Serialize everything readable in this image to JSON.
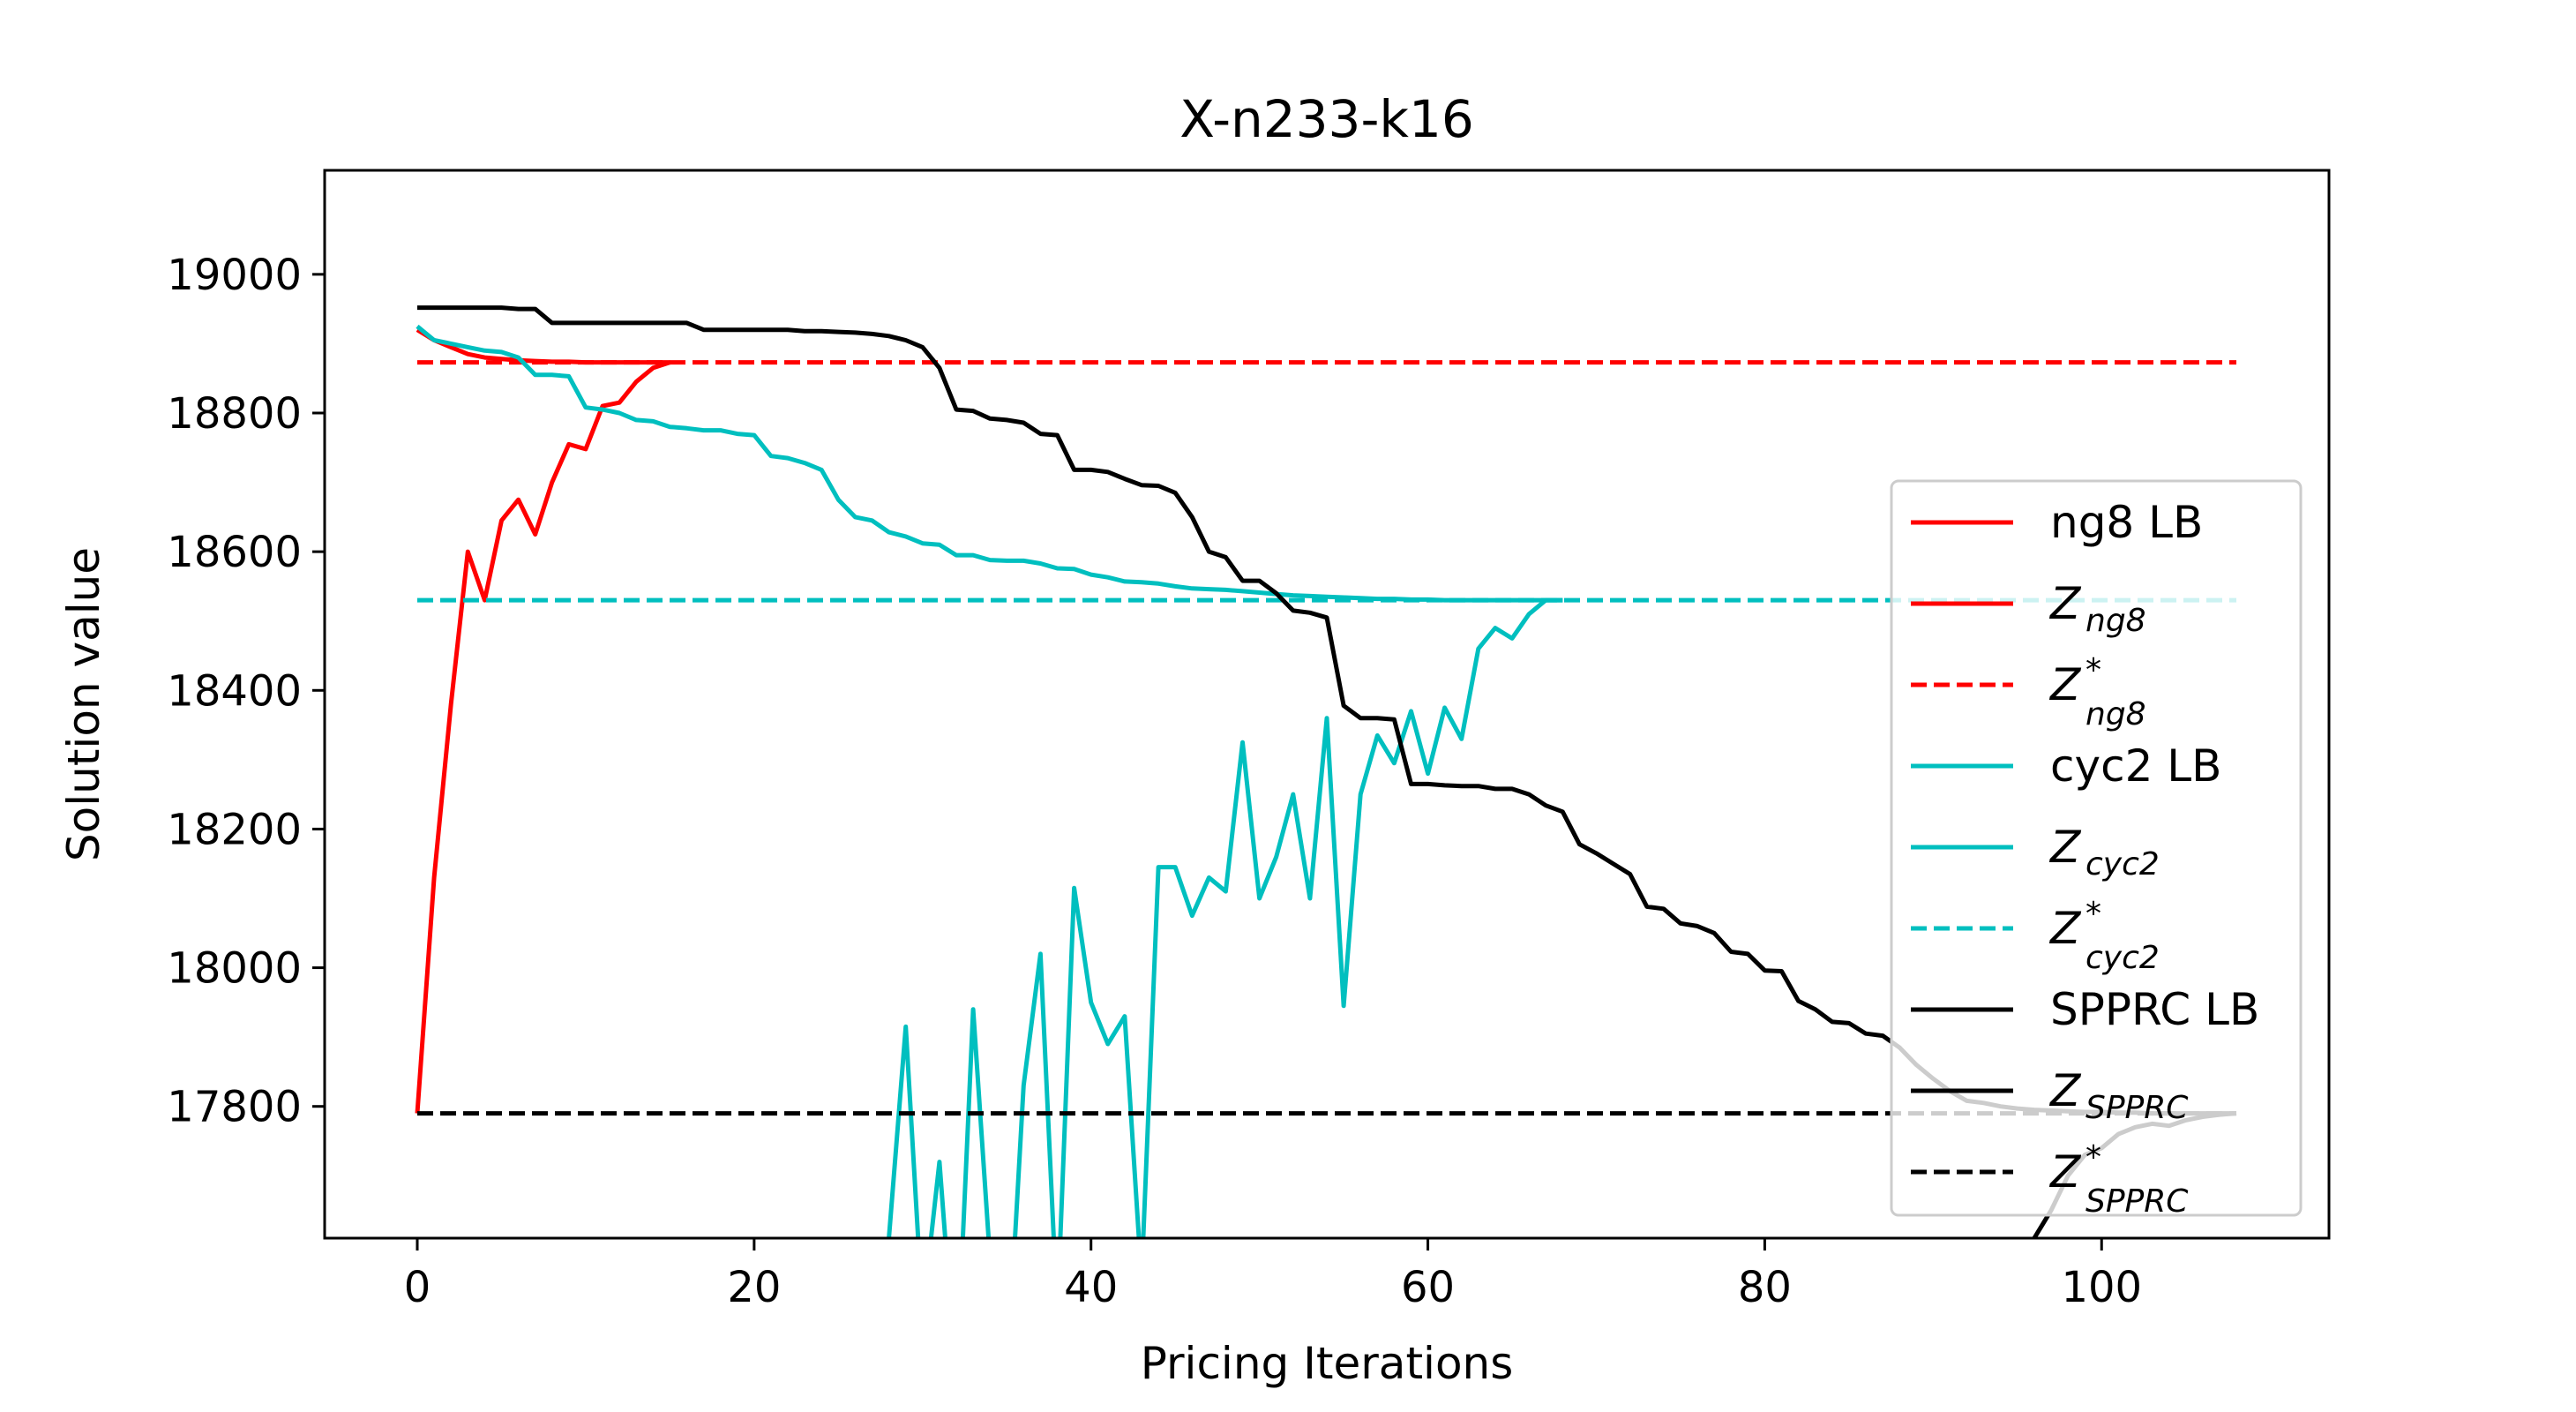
{
  "chart_data": {
    "type": "line",
    "title": "X-n233-k16",
    "xlabel": "Pricing Iterations",
    "ylabel": "Solution value",
    "xlim": [
      -5.5,
      113.5
    ],
    "ylim": [
      17610,
      19150
    ],
    "xticks": [
      0,
      20,
      40,
      60,
      80,
      100
    ],
    "yticks": [
      17800,
      18000,
      18200,
      18400,
      18600,
      18800,
      19000
    ],
    "grid": false,
    "legend_position": "right",
    "series": [
      {
        "name": "ng8 LB",
        "color": "#ff0000",
        "style": "solid",
        "x": [
          0,
          1,
          2,
          3,
          4,
          5,
          6,
          7,
          8,
          9,
          10,
          11,
          12,
          13,
          14,
          15
        ],
        "y": [
          17790,
          18130,
          18380,
          18600,
          18530,
          18645,
          18675,
          18625,
          18700,
          18755,
          18748,
          18810,
          18815,
          18845,
          18865,
          18873
        ]
      },
      {
        "name": "Z_{ng8}",
        "color": "#ff0000",
        "style": "solid",
        "x": [
          0,
          1,
          2,
          3,
          4,
          5,
          6,
          7,
          8,
          9,
          10,
          11,
          12,
          13,
          14,
          15
        ],
        "y": [
          18920,
          18905,
          18895,
          18885,
          18880,
          18878,
          18876,
          18875,
          18874,
          18874,
          18873,
          18873,
          18873,
          18873,
          18873,
          18873
        ]
      },
      {
        "name": "Z^*_{ng8}",
        "color": "#ff0000",
        "style": "dashed",
        "x": [
          0,
          108
        ],
        "y": [
          18873,
          18873
        ]
      },
      {
        "name": "cyc2 LB",
        "color": "#00bfbf",
        "style": "solid",
        "x": [
          28,
          29,
          30,
          31,
          32,
          33,
          34,
          35,
          36,
          37,
          38,
          39,
          40,
          41,
          42,
          43,
          44,
          45,
          46,
          47,
          48,
          49,
          50,
          51,
          52,
          53,
          54,
          55,
          56,
          57,
          58,
          59,
          60,
          61,
          62,
          63,
          64,
          65,
          66,
          67,
          68
        ],
        "y": [
          17610,
          17915,
          17500,
          17720,
          17400,
          17940,
          17580,
          17400,
          17830,
          18020,
          17500,
          18115,
          17950,
          17890,
          17930,
          17550,
          18145,
          18145,
          18075,
          18130,
          18110,
          18325,
          18100,
          18160,
          18250,
          18100,
          18360,
          17945,
          18250,
          18335,
          18295,
          18370,
          18280,
          18375,
          18330,
          18460,
          18490,
          18475,
          18510,
          18530,
          18530
        ]
      },
      {
        "name": "Z_{cyc2}",
        "color": "#00bfbf",
        "style": "solid",
        "x": [
          0,
          1,
          2,
          3,
          4,
          5,
          6,
          7,
          8,
          9,
          10,
          11,
          12,
          13,
          14,
          15,
          16,
          17,
          18,
          19,
          20,
          21,
          22,
          23,
          24,
          25,
          26,
          27,
          28,
          29,
          30,
          31,
          32,
          33,
          34,
          35,
          36,
          37,
          38,
          39,
          40,
          41,
          42,
          43,
          44,
          45,
          46,
          47,
          48,
          49,
          50,
          51,
          52,
          53,
          54,
          55,
          56,
          57,
          58,
          59,
          60,
          61,
          62,
          63,
          64,
          65,
          66,
          67,
          68
        ],
        "y": [
          18925,
          18905,
          18900,
          18895,
          18890,
          18888,
          18880,
          18855,
          18855,
          18853,
          18808,
          18805,
          18800,
          18790,
          18788,
          18780,
          18778,
          18775,
          18775,
          18770,
          18768,
          18738,
          18735,
          18728,
          18718,
          18675,
          18650,
          18645,
          18628,
          18622,
          18612,
          18610,
          18595,
          18595,
          18588,
          18587,
          18587,
          18583,
          18576,
          18575,
          18567,
          18563,
          18557,
          18556,
          18554,
          18550,
          18547,
          18546,
          18545,
          18543,
          18541,
          18539,
          18537,
          18536,
          18535,
          18534,
          18533,
          18532,
          18532,
          18531,
          18531,
          18530,
          18530,
          18530,
          18530,
          18530,
          18530,
          18530,
          18530
        ]
      },
      {
        "name": "Z^*_{cyc2}",
        "color": "#00bfbf",
        "style": "dashed",
        "x": [
          0,
          108
        ],
        "y": [
          18530,
          18530
        ]
      },
      {
        "name": "SPPRC LB",
        "color": "#000000",
        "style": "solid",
        "x": [
          96,
          97,
          98,
          99,
          100,
          101,
          102,
          103,
          104,
          105,
          106,
          107,
          108
        ],
        "y": [
          17610,
          17650,
          17700,
          17730,
          17740,
          17760,
          17770,
          17775,
          17772,
          17780,
          17785,
          17788,
          17790
        ]
      },
      {
        "name": "Z_{SPPRC}",
        "color": "#000000",
        "style": "solid",
        "x": [
          0,
          1,
          2,
          3,
          4,
          5,
          6,
          7,
          8,
          9,
          10,
          11,
          12,
          13,
          14,
          15,
          16,
          17,
          18,
          19,
          20,
          21,
          22,
          23,
          24,
          25,
          26,
          27,
          28,
          29,
          30,
          31,
          32,
          33,
          34,
          35,
          36,
          37,
          38,
          39,
          40,
          41,
          42,
          43,
          44,
          45,
          46,
          47,
          48,
          49,
          50,
          51,
          52,
          53,
          54,
          55,
          56,
          57,
          58,
          59,
          60,
          61,
          62,
          63,
          64,
          65,
          66,
          67,
          68,
          69,
          70,
          71,
          72,
          73,
          74,
          75,
          76,
          77,
          78,
          79,
          80,
          81,
          82,
          83,
          84,
          85,
          86,
          87,
          88,
          89,
          90,
          91,
          92,
          93,
          94,
          95,
          96,
          97,
          98,
          99,
          100,
          101,
          102,
          103,
          104,
          105,
          106,
          107,
          108
        ],
        "y": [
          18952,
          18952,
          18952,
          18952,
          18952,
          18952,
          18950,
          18950,
          18930,
          18930,
          18930,
          18930,
          18930,
          18930,
          18930,
          18930,
          18930,
          18920,
          18920,
          18920,
          18920,
          18920,
          18920,
          18918,
          18918,
          18917,
          18916,
          18914,
          18911,
          18905,
          18895,
          18865,
          18805,
          18803,
          18792,
          18790,
          18786,
          18770,
          18768,
          18718,
          18718,
          18715,
          18705,
          18696,
          18695,
          18685,
          18650,
          18600,
          18592,
          18558,
          18558,
          18540,
          18515,
          18512,
          18505,
          18378,
          18360,
          18360,
          18358,
          18265,
          18265,
          18263,
          18262,
          18262,
          18258,
          18258,
          18250,
          18234,
          18225,
          18178,
          18165,
          18150,
          18135,
          18088,
          18085,
          18064,
          18060,
          18050,
          18023,
          18020,
          17996,
          17995,
          17952,
          17940,
          17922,
          17920,
          17905,
          17902,
          17885,
          17860,
          17840,
          17822,
          17808,
          17805,
          17800,
          17797,
          17795,
          17794,
          17793,
          17792,
          17792,
          17791,
          17791,
          17790,
          17790,
          17790,
          17790,
          17790,
          17790
        ]
      },
      {
        "name": "Z^*_{SPPRC}",
        "color": "#000000",
        "style": "dashed",
        "x": [
          0,
          108
        ],
        "y": [
          17790,
          17790
        ]
      }
    ],
    "legend": [
      {
        "color": "#ff0000",
        "style": "solid",
        "base": "ng8 LB",
        "sub": "",
        "sup": ""
      },
      {
        "color": "#ff0000",
        "style": "solid",
        "base": "Z",
        "sub": "ng8",
        "sup": ""
      },
      {
        "color": "#ff0000",
        "style": "dashed",
        "base": "Z",
        "sub": "ng8",
        "sup": "*"
      },
      {
        "color": "#00bfbf",
        "style": "solid",
        "base": "cyc2 LB",
        "sub": "",
        "sup": ""
      },
      {
        "color": "#00bfbf",
        "style": "solid",
        "base": "Z",
        "sub": "cyc2",
        "sup": ""
      },
      {
        "color": "#00bfbf",
        "style": "dashed",
        "base": "Z",
        "sub": "cyc2",
        "sup": "*"
      },
      {
        "color": "#000000",
        "style": "solid",
        "base": "SPPRC LB",
        "sub": "",
        "sup": ""
      },
      {
        "color": "#000000",
        "style": "solid",
        "base": "Z",
        "sub": "SPPRC",
        "sup": ""
      },
      {
        "color": "#000000",
        "style": "dashed",
        "base": "Z",
        "sub": "SPPRC",
        "sup": "*"
      }
    ]
  }
}
